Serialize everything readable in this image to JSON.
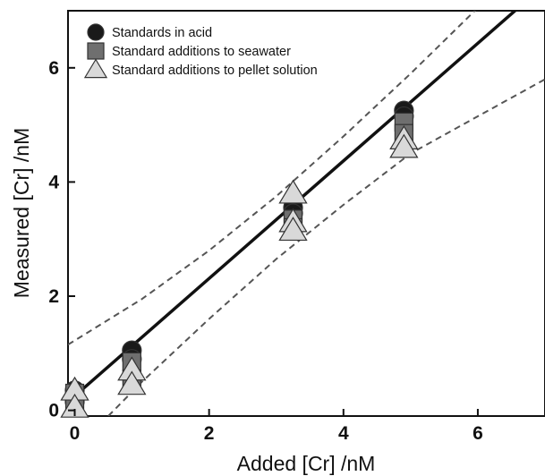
{
  "chart_data": {
    "type": "scatter",
    "xlabel": "Added [Cr] /nM",
    "ylabel": "Measured [Cr] /nM",
    "xlim": [
      -0.1,
      7.0
    ],
    "ylim": [
      -0.1,
      7.0
    ],
    "x_ticks": [
      0,
      2,
      4,
      6
    ],
    "y_ticks": [
      0,
      2,
      4,
      6
    ],
    "legend_position": "top-left",
    "series": [
      {
        "name": "Standards in acid",
        "marker": "circle",
        "color": "#1a1a1a",
        "points": [
          {
            "x": 0,
            "y": 0.35
          },
          {
            "x": 0,
            "y": 0.15
          },
          {
            "x": 0.85,
            "y": 1.05
          },
          {
            "x": 0.85,
            "y": 0.9
          },
          {
            "x": 3.25,
            "y": 3.55
          },
          {
            "x": 3.25,
            "y": 3.45
          },
          {
            "x": 4.9,
            "y": 5.25
          },
          {
            "x": 4.9,
            "y": 5.15
          }
        ]
      },
      {
        "name": "Standard additions to seawater",
        "marker": "square",
        "color": "#6f6f6f",
        "points": [
          {
            "x": 0,
            "y": 0.3
          },
          {
            "x": 0,
            "y": 0.1
          },
          {
            "x": 0.85,
            "y": 0.85
          },
          {
            "x": 0.85,
            "y": 0.55
          },
          {
            "x": 3.25,
            "y": 3.35
          },
          {
            "x": 3.25,
            "y": 3.2
          },
          {
            "x": 4.9,
            "y": 5.05
          },
          {
            "x": 4.9,
            "y": 4.85
          }
        ]
      },
      {
        "name": "Standard additions to pellet solution",
        "marker": "triangle",
        "color": "#d9d9d9",
        "points": [
          {
            "x": 0,
            "y": 0.35
          },
          {
            "x": 0,
            "y": 0.05
          },
          {
            "x": 0.85,
            "y": 0.7
          },
          {
            "x": 0.85,
            "y": 0.45
          },
          {
            "x": 3.25,
            "y": 3.8
          },
          {
            "x": 3.25,
            "y": 3.3
          },
          {
            "x": 3.25,
            "y": 3.15
          },
          {
            "x": 4.9,
            "y": 4.75
          },
          {
            "x": 4.9,
            "y": 4.6
          }
        ]
      }
    ],
    "fit_line": {
      "slope": 1.03,
      "intercept": 0.25,
      "style": "solid",
      "color": "#111111"
    },
    "confidence_bands": {
      "upper": [
        {
          "x": -0.1,
          "y": 1.15
        },
        {
          "x": 1,
          "y": 1.95
        },
        {
          "x": 2,
          "y": 2.8
        },
        {
          "x": 3,
          "y": 3.75
        },
        {
          "x": 4,
          "y": 4.8
        },
        {
          "x": 5,
          "y": 5.9
        },
        {
          "x": 6,
          "y": 7.05
        }
      ],
      "lower": [
        {
          "x": 0.5,
          "y": -0.1
        },
        {
          "x": 1,
          "y": 0.5
        },
        {
          "x": 2,
          "y": 1.6
        },
        {
          "x": 3,
          "y": 2.65
        },
        {
          "x": 4,
          "y": 3.6
        },
        {
          "x": 5,
          "y": 4.5
        },
        {
          "x": 6,
          "y": 5.15
        },
        {
          "x": 7.0,
          "y": 5.8
        }
      ],
      "style": "dashed",
      "color": "#555555"
    }
  }
}
